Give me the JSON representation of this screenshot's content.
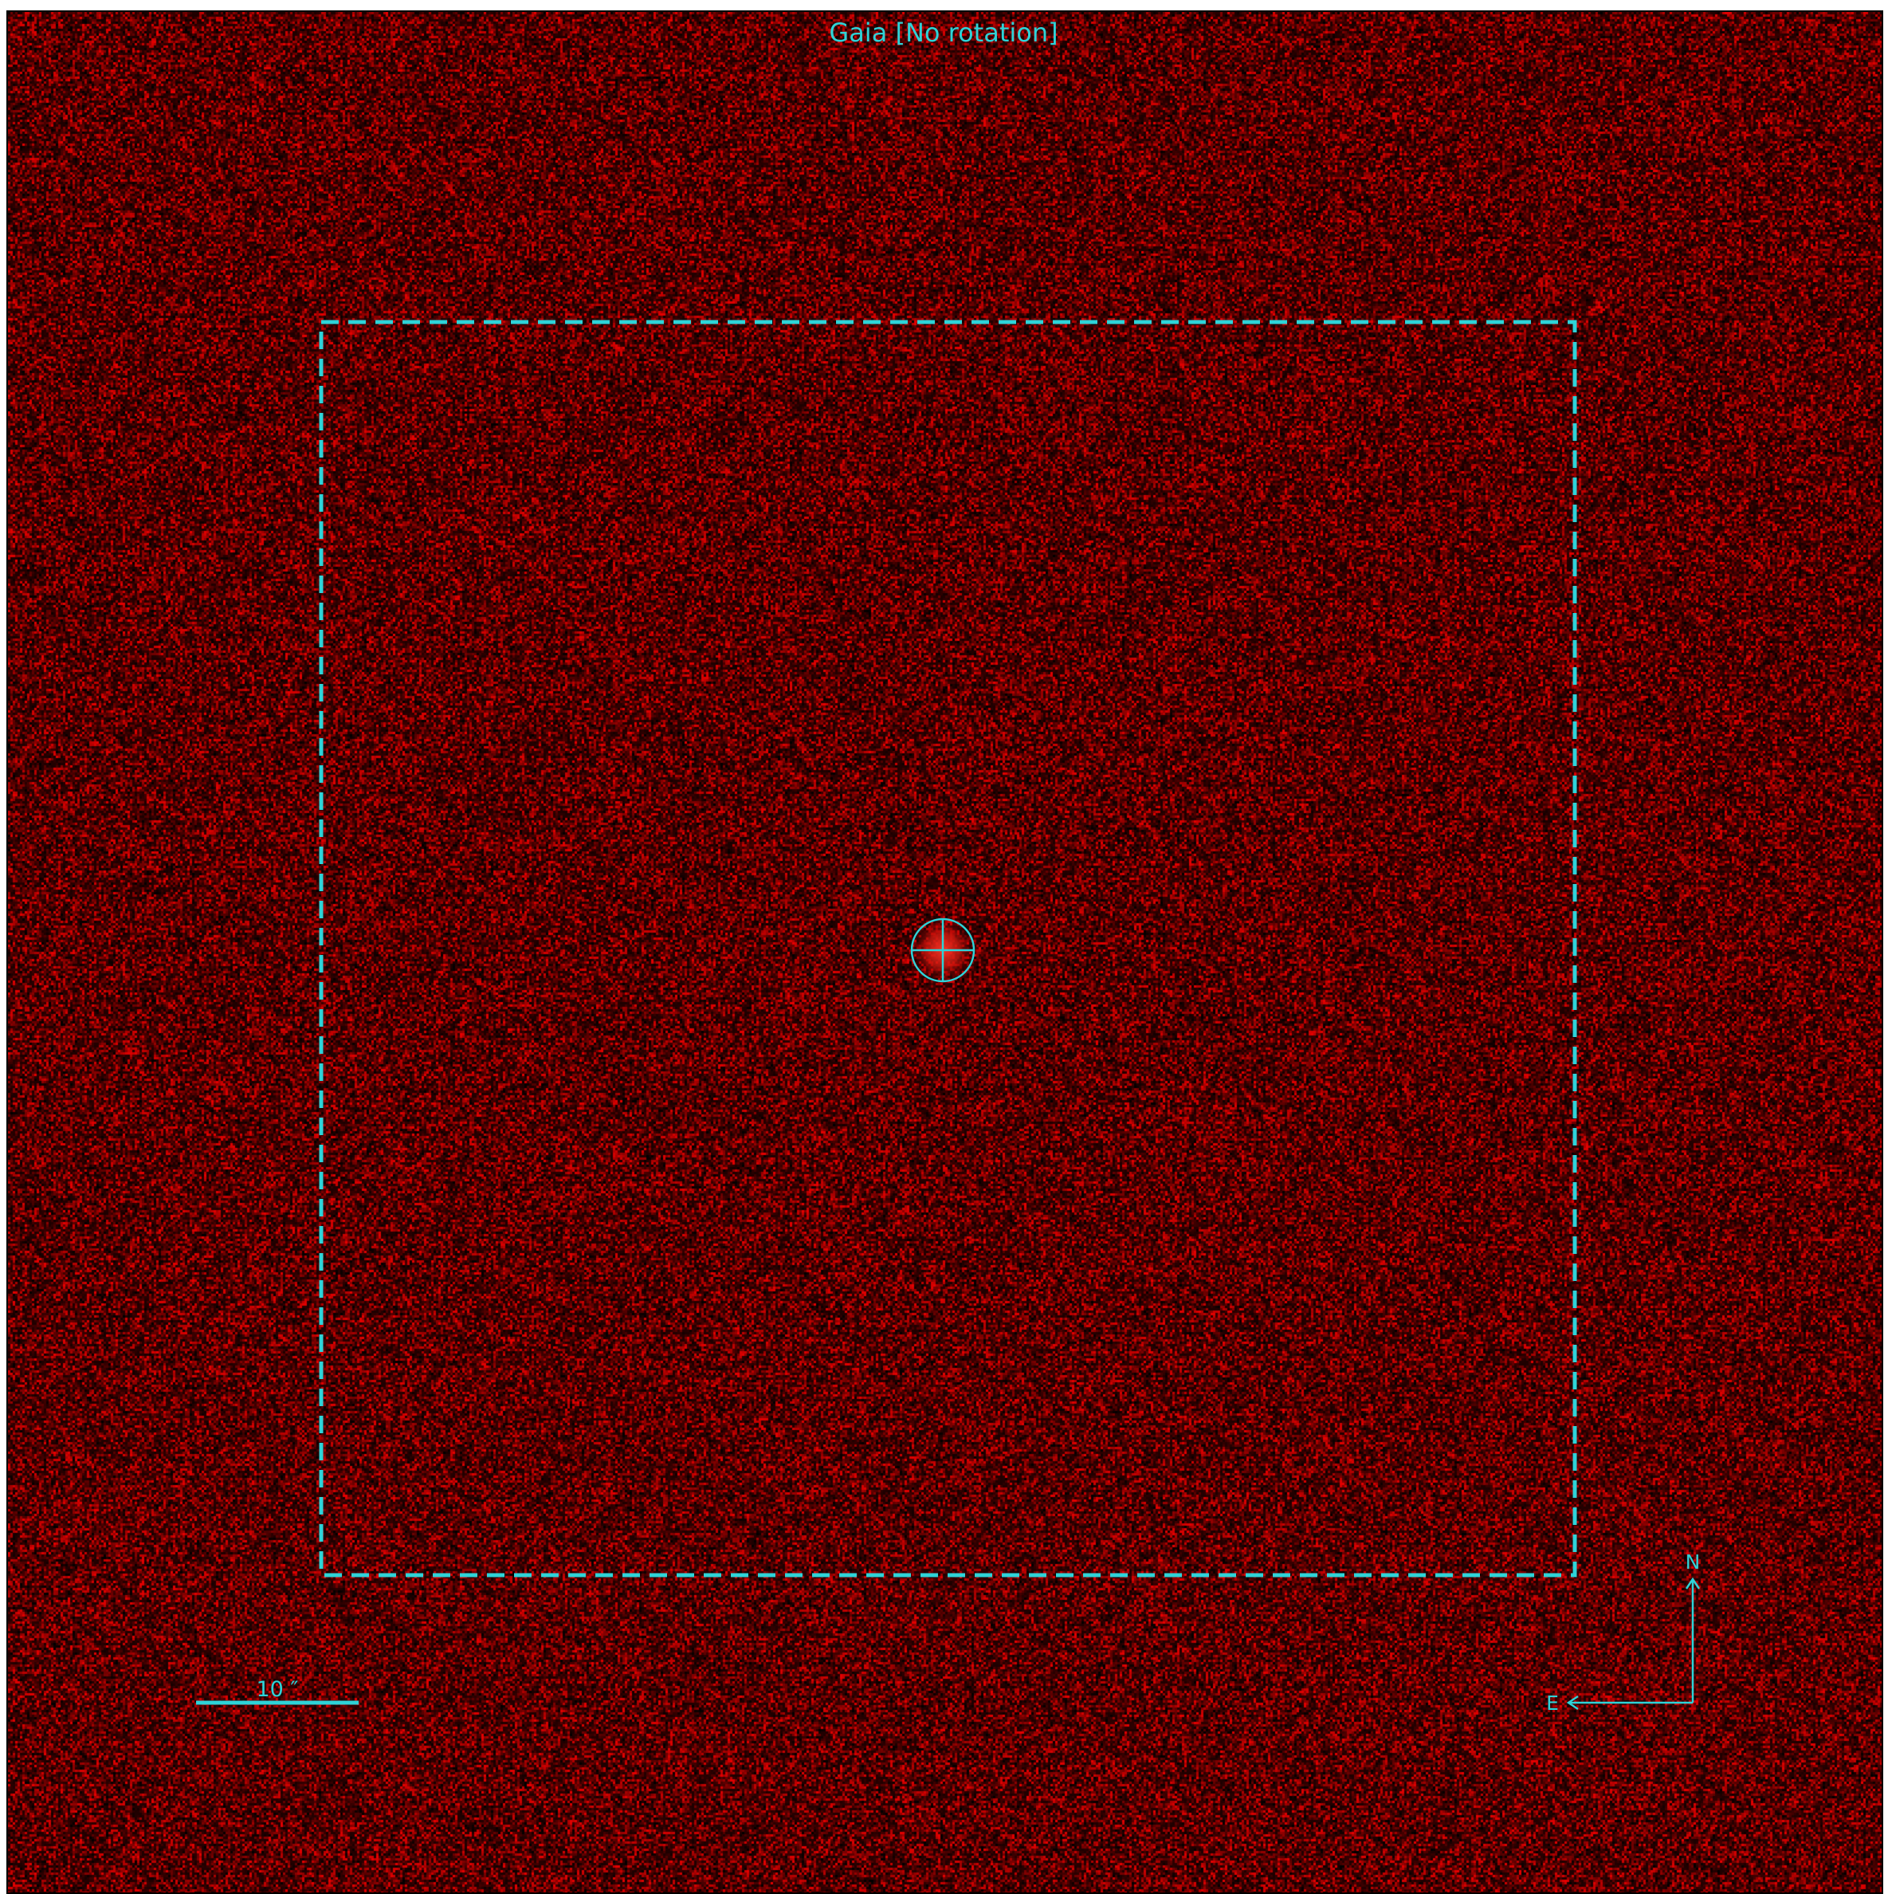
{
  "title": "Gaia [No rotation]",
  "scale_bar": {
    "label": "10 ″"
  },
  "compass": {
    "north_label": "N",
    "east_label": "E"
  },
  "colors": {
    "overlay": "#2ed3d8",
    "background_base": "#7a0000",
    "frame_border": "#000000"
  },
  "icons": {
    "target_marker": "crosshair-circle-icon",
    "north_arrow": "arrow-up-icon",
    "east_arrow": "arrow-left-icon"
  }
}
